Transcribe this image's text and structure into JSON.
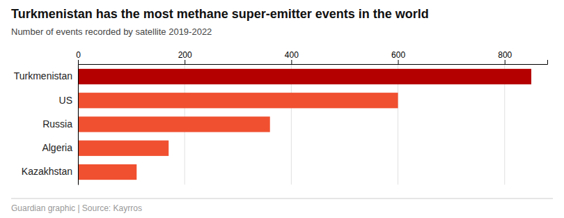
{
  "chart_data": {
    "type": "bar",
    "orientation": "horizontal",
    "title": "Turkmenistan has the most methane super-emitter events in the world",
    "subtitle": "Number of events recorded by satellite 2019-2022",
    "annotations": [
      "Guardian graphic | Source: Kayrros"
    ],
    "categories": [
      "Turkmenistan",
      "US",
      "Russia",
      "Algeria",
      "Kazakhstan"
    ],
    "values": [
      850,
      600,
      360,
      170,
      110
    ],
    "colors": [
      "#b50000",
      "#f05030",
      "#f05030",
      "#f05030",
      "#f05030"
    ],
    "xlim": [
      0,
      880
    ],
    "xticks": [
      0,
      200,
      400,
      600,
      800
    ],
    "grid": true
  }
}
